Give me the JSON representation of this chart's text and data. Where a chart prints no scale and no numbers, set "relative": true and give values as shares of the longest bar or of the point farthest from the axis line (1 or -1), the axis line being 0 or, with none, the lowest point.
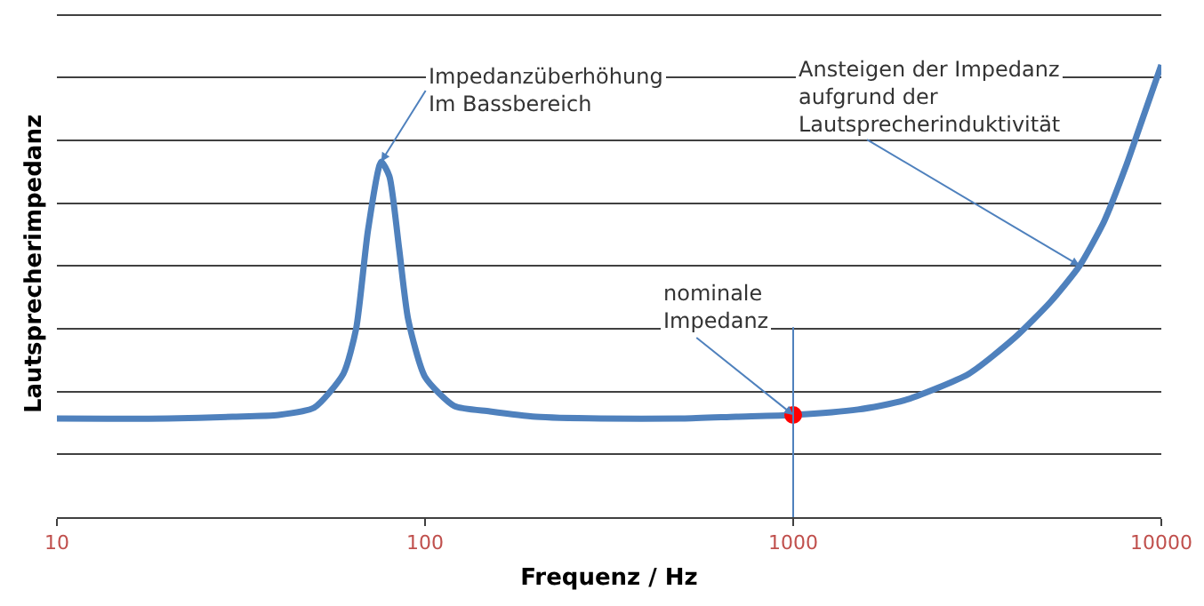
{
  "chart_data": {
    "type": "line",
    "relative": true,
    "log": "x",
    "xlabel": "Frequenz / Hz",
    "ylabel": "Lautsprecherimpedanz",
    "xlim": [
      10,
      10000
    ],
    "xticks": [
      10,
      100,
      1000,
      10000
    ],
    "grid": "y",
    "series": [
      {
        "color": "#4f81bd",
        "marker": "none",
        "x": [
          10,
          20,
          30,
          40,
          50,
          60,
          65,
          70,
          76,
          80,
          85,
          90,
          100,
          120,
          150,
          200,
          300,
          500,
          700,
          1000,
          1500,
          2000,
          3000,
          4000,
          5000,
          6000,
          7000,
          8000,
          9000,
          10000
        ],
        "values": [
          0.218,
          0.218,
          0.222,
          0.226,
          0.242,
          0.317,
          0.417,
          0.635,
          0.786,
          0.754,
          0.595,
          0.437,
          0.31,
          0.246,
          0.234,
          0.222,
          0.218,
          0.218,
          0.222,
          0.226,
          0.238,
          0.258,
          0.317,
          0.397,
          0.476,
          0.556,
          0.655,
          0.774,
          0.893,
          1
        ]
      },
      {
        "type": "scatter",
        "color": "#ff0000",
        "marker": "circle",
        "x": [
          1000
        ],
        "values": [
          0.226
        ]
      }
    ],
    "ref_lines": [
      {
        "axis": "x",
        "value": 1000,
        "color": "#4f81bd"
      }
    ],
    "annotations": [
      {
        "text": "Impedanzüberhöhung\nIm Bassbereich",
        "x": 76,
        "y": 0.786
      },
      {
        "text": "nominale\nImpedanz",
        "x": 1000,
        "y": 0.226
      },
      {
        "text": "Ansteigen der Impedanz\naufgrund der\nLautsprecherinduktivität",
        "x": 6000,
        "y": 0.556
      }
    ]
  }
}
